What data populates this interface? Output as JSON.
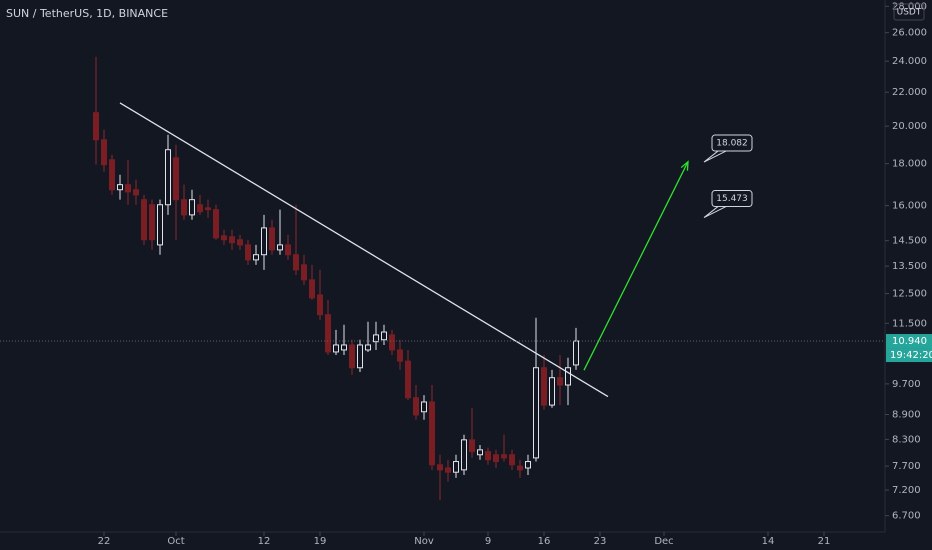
{
  "chart_data": {
    "type": "candlestick",
    "title": "SUN / TetherUS, 1D, BINANCE",
    "currency": "USDT",
    "x": [
      "09-21",
      "09-22",
      "09-23",
      "09-24",
      "09-25",
      "09-26",
      "09-27",
      "09-28",
      "09-29",
      "09-30",
      "10-01",
      "10-02",
      "10-03",
      "10-04",
      "10-05",
      "10-06",
      "10-07",
      "10-08",
      "10-09",
      "10-10",
      "10-11",
      "10-12",
      "10-13",
      "10-14",
      "10-15",
      "10-16",
      "10-17",
      "10-18",
      "10-19",
      "10-20",
      "10-21",
      "10-22",
      "10-23",
      "10-24",
      "10-25",
      "10-26",
      "10-27",
      "10-28",
      "10-29",
      "10-30",
      "10-31",
      "11-01",
      "11-02",
      "11-03",
      "11-04",
      "11-05",
      "11-06",
      "11-07",
      "11-08",
      "11-09",
      "11-10",
      "11-11",
      "11-12",
      "11-13",
      "11-14",
      "11-15",
      "11-16",
      "11-17",
      "11-18",
      "11-19",
      "11-20"
    ],
    "open": [
      20.77,
      19.25,
      18.2,
      16.73,
      16.97,
      16.73,
      16.27,
      16.04,
      14.33,
      16.04,
      18.3,
      16.27,
      15.59,
      16.04,
      15.9,
      15.82,
      14.7,
      14.66,
      14.54,
      14.33,
      13.74,
      13.94,
      15.03,
      14.13,
      14.33,
      13.94,
      13.55,
      12.99,
      12.45,
      11.78,
      10.61,
      10.67,
      10.82,
      10.15,
      10.67,
      10.92,
      10.98,
      11.13,
      10.67,
      10.34,
      9.33,
      8.97,
      9.22,
      7.73,
      7.66,
      7.57,
      7.62,
      8.29,
      7.95,
      8.02,
      7.95,
      7.95,
      7.95,
      7.7,
      7.66,
      7.88,
      10.15,
      9.14,
      9.87,
      9.67,
      10.23
    ],
    "high": [
      24.3,
      19.8,
      18.46,
      17.45,
      18.2,
      17.21,
      16.49,
      16.27,
      16.27,
      19.52,
      18.98,
      16.97,
      16.73,
      16.49,
      16.27,
      16.04,
      14.95,
      14.95,
      14.74,
      14.54,
      14.33,
      15.59,
      15.38,
      15.82,
      14.74,
      16.04,
      13.94,
      13.55,
      13.36,
      12.28,
      11.29,
      11.45,
      10.98,
      10.98,
      11.55,
      11.55,
      11.45,
      11.29,
      10.98,
      10.67,
      9.67,
      9.4,
      9.67,
      7.95,
      7.84,
      7.95,
      8.41,
      9.07,
      8.17,
      8.11,
      8.06,
      8.41,
      8.06,
      7.84,
      7.95,
      11.68,
      10.52,
      10.09,
      10.52,
      10.44,
      11.35
    ],
    "low": [
      17.95,
      17.6,
      16.49,
      16.27,
      16.04,
      16.04,
      14.33,
      14.13,
      13.94,
      15.59,
      14.54,
      15.38,
      15.38,
      15.59,
      15.46,
      14.54,
      14.33,
      14.13,
      14.13,
      13.55,
      13.55,
      13.36,
      13.94,
      13.94,
      13.74,
      13.17,
      12.81,
      12.28,
      11.61,
      10.52,
      10.52,
      10.52,
      9.95,
      10.03,
      10.61,
      10.67,
      10.82,
      10.52,
      10.09,
      9.27,
      8.77,
      8.77,
      7.62,
      7.0,
      7.37,
      7.45,
      7.51,
      7.88,
      7.84,
      7.73,
      7.66,
      7.8,
      7.62,
      7.45,
      7.51,
      7.8,
      9.02,
      9.07,
      9.14,
      9.14,
      10.09
    ],
    "close": [
      19.25,
      17.95,
      16.73,
      16.97,
      16.63,
      16.49,
      14.54,
      14.54,
      16.04,
      18.72,
      16.27,
      15.59,
      16.27,
      15.73,
      15.82,
      14.62,
      14.54,
      14.42,
      14.33,
      13.74,
      13.94,
      15.03,
      14.13,
      14.33,
      13.94,
      13.36,
      12.99,
      12.35,
      11.78,
      10.61,
      10.82,
      10.82,
      10.15,
      10.82,
      10.82,
      11.13,
      11.22,
      10.67,
      10.34,
      9.33,
      8.89,
      9.22,
      7.73,
      7.62,
      7.57,
      7.8,
      8.29,
      8.02,
      8.06,
      7.84,
      7.8,
      7.88,
      7.73,
      7.62,
      7.8,
      10.15,
      9.14,
      9.87,
      9.67,
      10.15,
      10.94
    ],
    "up_color": "#e0e3eb",
    "down_color": "#7a1e24",
    "xlim": [
      "09-09",
      "12-28"
    ],
    "xticks": [
      {
        "value": "09-22",
        "label": "22"
      },
      {
        "value": "10-01",
        "label": "Oct"
      },
      {
        "value": "10-12",
        "label": "12"
      },
      {
        "value": "10-19",
        "label": "19"
      },
      {
        "value": "11-01",
        "label": "Nov"
      },
      {
        "value": "11-09",
        "label": "9"
      },
      {
        "value": "11-16",
        "label": "16"
      },
      {
        "value": "11-23",
        "label": "23"
      },
      {
        "value": "12-01",
        "label": "Dec"
      },
      {
        "value": "12-14",
        "label": "14"
      },
      {
        "value": "12-21",
        "label": "21"
      }
    ],
    "ylim": [
      6.4,
      28.5
    ],
    "log_scale": true,
    "grid": false,
    "yticks": [
      {
        "value": 28,
        "label": "28.000"
      },
      {
        "value": 26,
        "label": "26.000"
      },
      {
        "value": 24,
        "label": "24.000"
      },
      {
        "value": 22,
        "label": "22.000"
      },
      {
        "value": 20,
        "label": "20.000"
      },
      {
        "value": 18,
        "label": "18.000"
      },
      {
        "value": 16,
        "label": "16.000"
      },
      {
        "value": 14.5,
        "label": "14.500"
      },
      {
        "value": 13.5,
        "label": "13.500"
      },
      {
        "value": 12.5,
        "label": "12.500"
      },
      {
        "value": 11.5,
        "label": "11.500"
      },
      {
        "value": 9.7,
        "label": "9.700"
      },
      {
        "value": 8.9,
        "label": "8.900"
      },
      {
        "value": 8.3,
        "label": "8.300"
      },
      {
        "value": 7.7,
        "label": "7.700"
      },
      {
        "value": 7.2,
        "label": "7.200"
      },
      {
        "value": 6.7,
        "label": "6.700"
      }
    ],
    "last_price": {
      "value": 10.94,
      "label": "10.940",
      "countdown": "19:42:20",
      "color": "#26a69a"
    },
    "trendline": {
      "x": [
        "09-24",
        "11-24"
      ],
      "values": [
        21.35,
        9.36
      ],
      "color": "#e0e3eb"
    },
    "arrow": {
      "x": [
        "11-21",
        "12-04"
      ],
      "values": [
        10.08,
        18.1
      ],
      "color": "#2ee22e"
    },
    "callouts": [
      {
        "x": "12-06",
        "value": 18.082
      },
      {
        "x": "12-06",
        "value": 15.473
      }
    ]
  }
}
